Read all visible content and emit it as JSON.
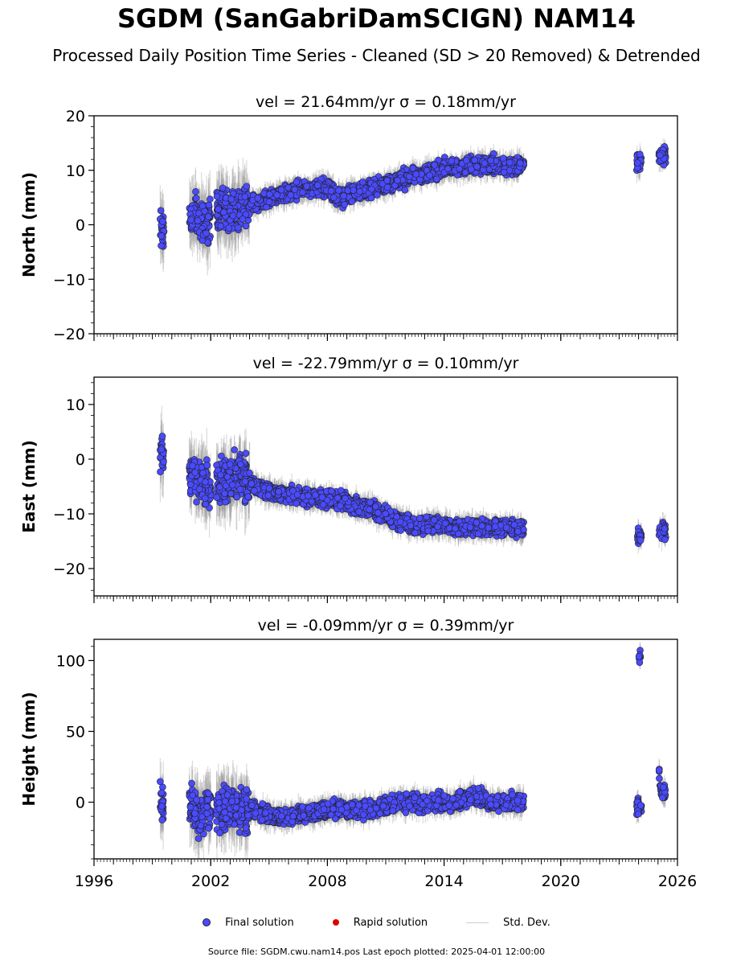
{
  "title": "SGDM (SanGabriDamSCIGN) NAM14",
  "subtitle": "Processed Daily Position Time Series - Cleaned (SD > 20 Removed) & Detrended",
  "legend": {
    "final": "Final solution",
    "rapid": "Rapid solution",
    "std": "Std. Dev."
  },
  "footer": "Source file: SGDM.cwu.nam14.pos  Last epoch plotted: 2025-04-01 12:00:00",
  "colors": {
    "final": "#4a4aff",
    "rapid": "#e00000",
    "std": "#bbbbbb"
  },
  "chart_data": [
    {
      "type": "scatter",
      "panel": "north",
      "title": "vel = 21.64mm/yr   σ = 0.18mm/yr",
      "ylabel": "North (mm)",
      "xlim": [
        1996,
        2026
      ],
      "ylim": [
        -20,
        20
      ],
      "yticks": [
        -20,
        -10,
        0,
        10,
        20
      ],
      "xticks": [
        1996,
        2002,
        2008,
        2014,
        2020,
        2026
      ],
      "series": [
        {
          "name": "Final solution",
          "x": [
            1999.5,
            2001.0,
            2001.4,
            2001.8,
            2002.5,
            2003.0,
            2003.5,
            2004.2,
            2005.0,
            2006.0,
            2007.0,
            2008.0,
            2008.5,
            2009.5,
            2010.5,
            2011.5,
            2012.5,
            2013.5,
            2014.5,
            2015.5,
            2016.5,
            2017.5,
            2018.0,
            2024.0,
            2025.2
          ],
          "y": [
            -1,
            1,
            2,
            0,
            4,
            2,
            3,
            4,
            5,
            6,
            6.5,
            7,
            5,
            6,
            7,
            8,
            9,
            10,
            10.5,
            11,
            11,
            10.5,
            11,
            11.5,
            12.5
          ]
        }
      ]
    },
    {
      "type": "scatter",
      "panel": "east",
      "title": "vel = -22.79mm/yr   σ = 0.10mm/yr",
      "ylabel": "East (mm)",
      "xlim": [
        1996,
        2026
      ],
      "ylim": [
        -25,
        15
      ],
      "yticks": [
        -20,
        -10,
        0,
        10
      ],
      "xticks": [
        1996,
        2002,
        2008,
        2014,
        2020,
        2026
      ],
      "series": [
        {
          "name": "Final solution",
          "x": [
            1999.5,
            2001.0,
            2001.4,
            2001.8,
            2002.5,
            2003.0,
            2003.5,
            2004.2,
            2005.0,
            2006.0,
            2007.0,
            2008.0,
            2008.5,
            2009.5,
            2010.5,
            2011.5,
            2012.5,
            2013.5,
            2014.5,
            2015.5,
            2016.5,
            2017.5,
            2018.0,
            2024.0,
            2025.2
          ],
          "y": [
            1,
            -3,
            -4,
            -5,
            -4,
            -4,
            -3,
            -5,
            -6,
            -6.5,
            -7,
            -7,
            -7.5,
            -8.5,
            -9.5,
            -11,
            -12,
            -12,
            -12.5,
            -12.5,
            -12.5,
            -12.5,
            -13,
            -14,
            -13
          ]
        }
      ]
    },
    {
      "type": "scatter",
      "panel": "height",
      "title": "vel = -0.09mm/yr   σ = 0.39mm/yr",
      "ylabel": "Height (mm)",
      "xlim": [
        1996,
        2026
      ],
      "ylim": [
        -40,
        115
      ],
      "yticks": [
        0,
        50,
        100
      ],
      "xticks": [
        1996,
        2002,
        2008,
        2014,
        2020,
        2026
      ],
      "series": [
        {
          "name": "Final solution",
          "x": [
            1999.5,
            2001.0,
            2001.4,
            2001.8,
            2003.5,
            2004.2,
            2005.0,
            2006.0,
            2007.0,
            2008.0,
            2008.5,
            2009.5,
            2010.5,
            2011.5,
            2012.5,
            2013.5,
            2014.5,
            2015.5,
            2016.5,
            2017.5,
            2018.0,
            2024.0,
            2024.05,
            2025.2
          ],
          "y": [
            0,
            0,
            -10,
            -5,
            -5,
            -5,
            -10,
            -10,
            -8,
            -5,
            -5,
            -5,
            -5,
            0,
            0,
            0,
            0,
            5,
            0,
            0,
            0,
            -5,
            105,
            8
          ]
        }
      ]
    }
  ]
}
